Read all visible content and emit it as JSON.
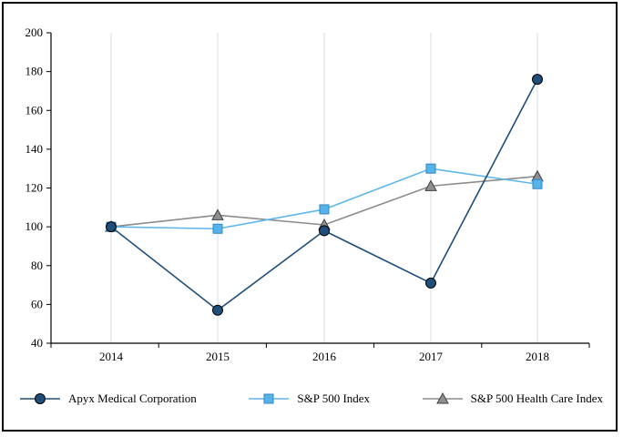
{
  "chart_data": {
    "type": "line",
    "categories": [
      "2014",
      "2015",
      "2016",
      "2017",
      "2018"
    ],
    "series": [
      {
        "name": "Apyx Medical Corporation",
        "values": [
          100,
          57,
          98,
          71,
          176
        ],
        "color": "#1F4E79",
        "marker": "circle",
        "marker_fill": "#1F4E79",
        "marker_edge": "#000000"
      },
      {
        "name": "S&P 500 Index",
        "values": [
          100,
          99,
          109,
          130,
          122
        ],
        "color": "#5EB7EA",
        "marker": "square",
        "marker_fill": "#56B2E8",
        "marker_edge": "#2F89C5"
      },
      {
        "name": "S&P 500 Health Care Index",
        "values": [
          100,
          106,
          101,
          121,
          126
        ],
        "color": "#8C8C8C",
        "marker": "triangle",
        "marker_fill": "#8F8F8F",
        "marker_edge": "#404040"
      }
    ],
    "ylim": [
      40,
      200
    ],
    "yticks": [
      40,
      60,
      80,
      100,
      120,
      140,
      160,
      180,
      200
    ],
    "grid": "vertical",
    "legend_position": "bottom",
    "colors": {
      "axis": "#000000",
      "gridline": "#D9DEE8",
      "frame_border": "#000000",
      "background": "#FFFFFF",
      "text": "#000000"
    }
  }
}
